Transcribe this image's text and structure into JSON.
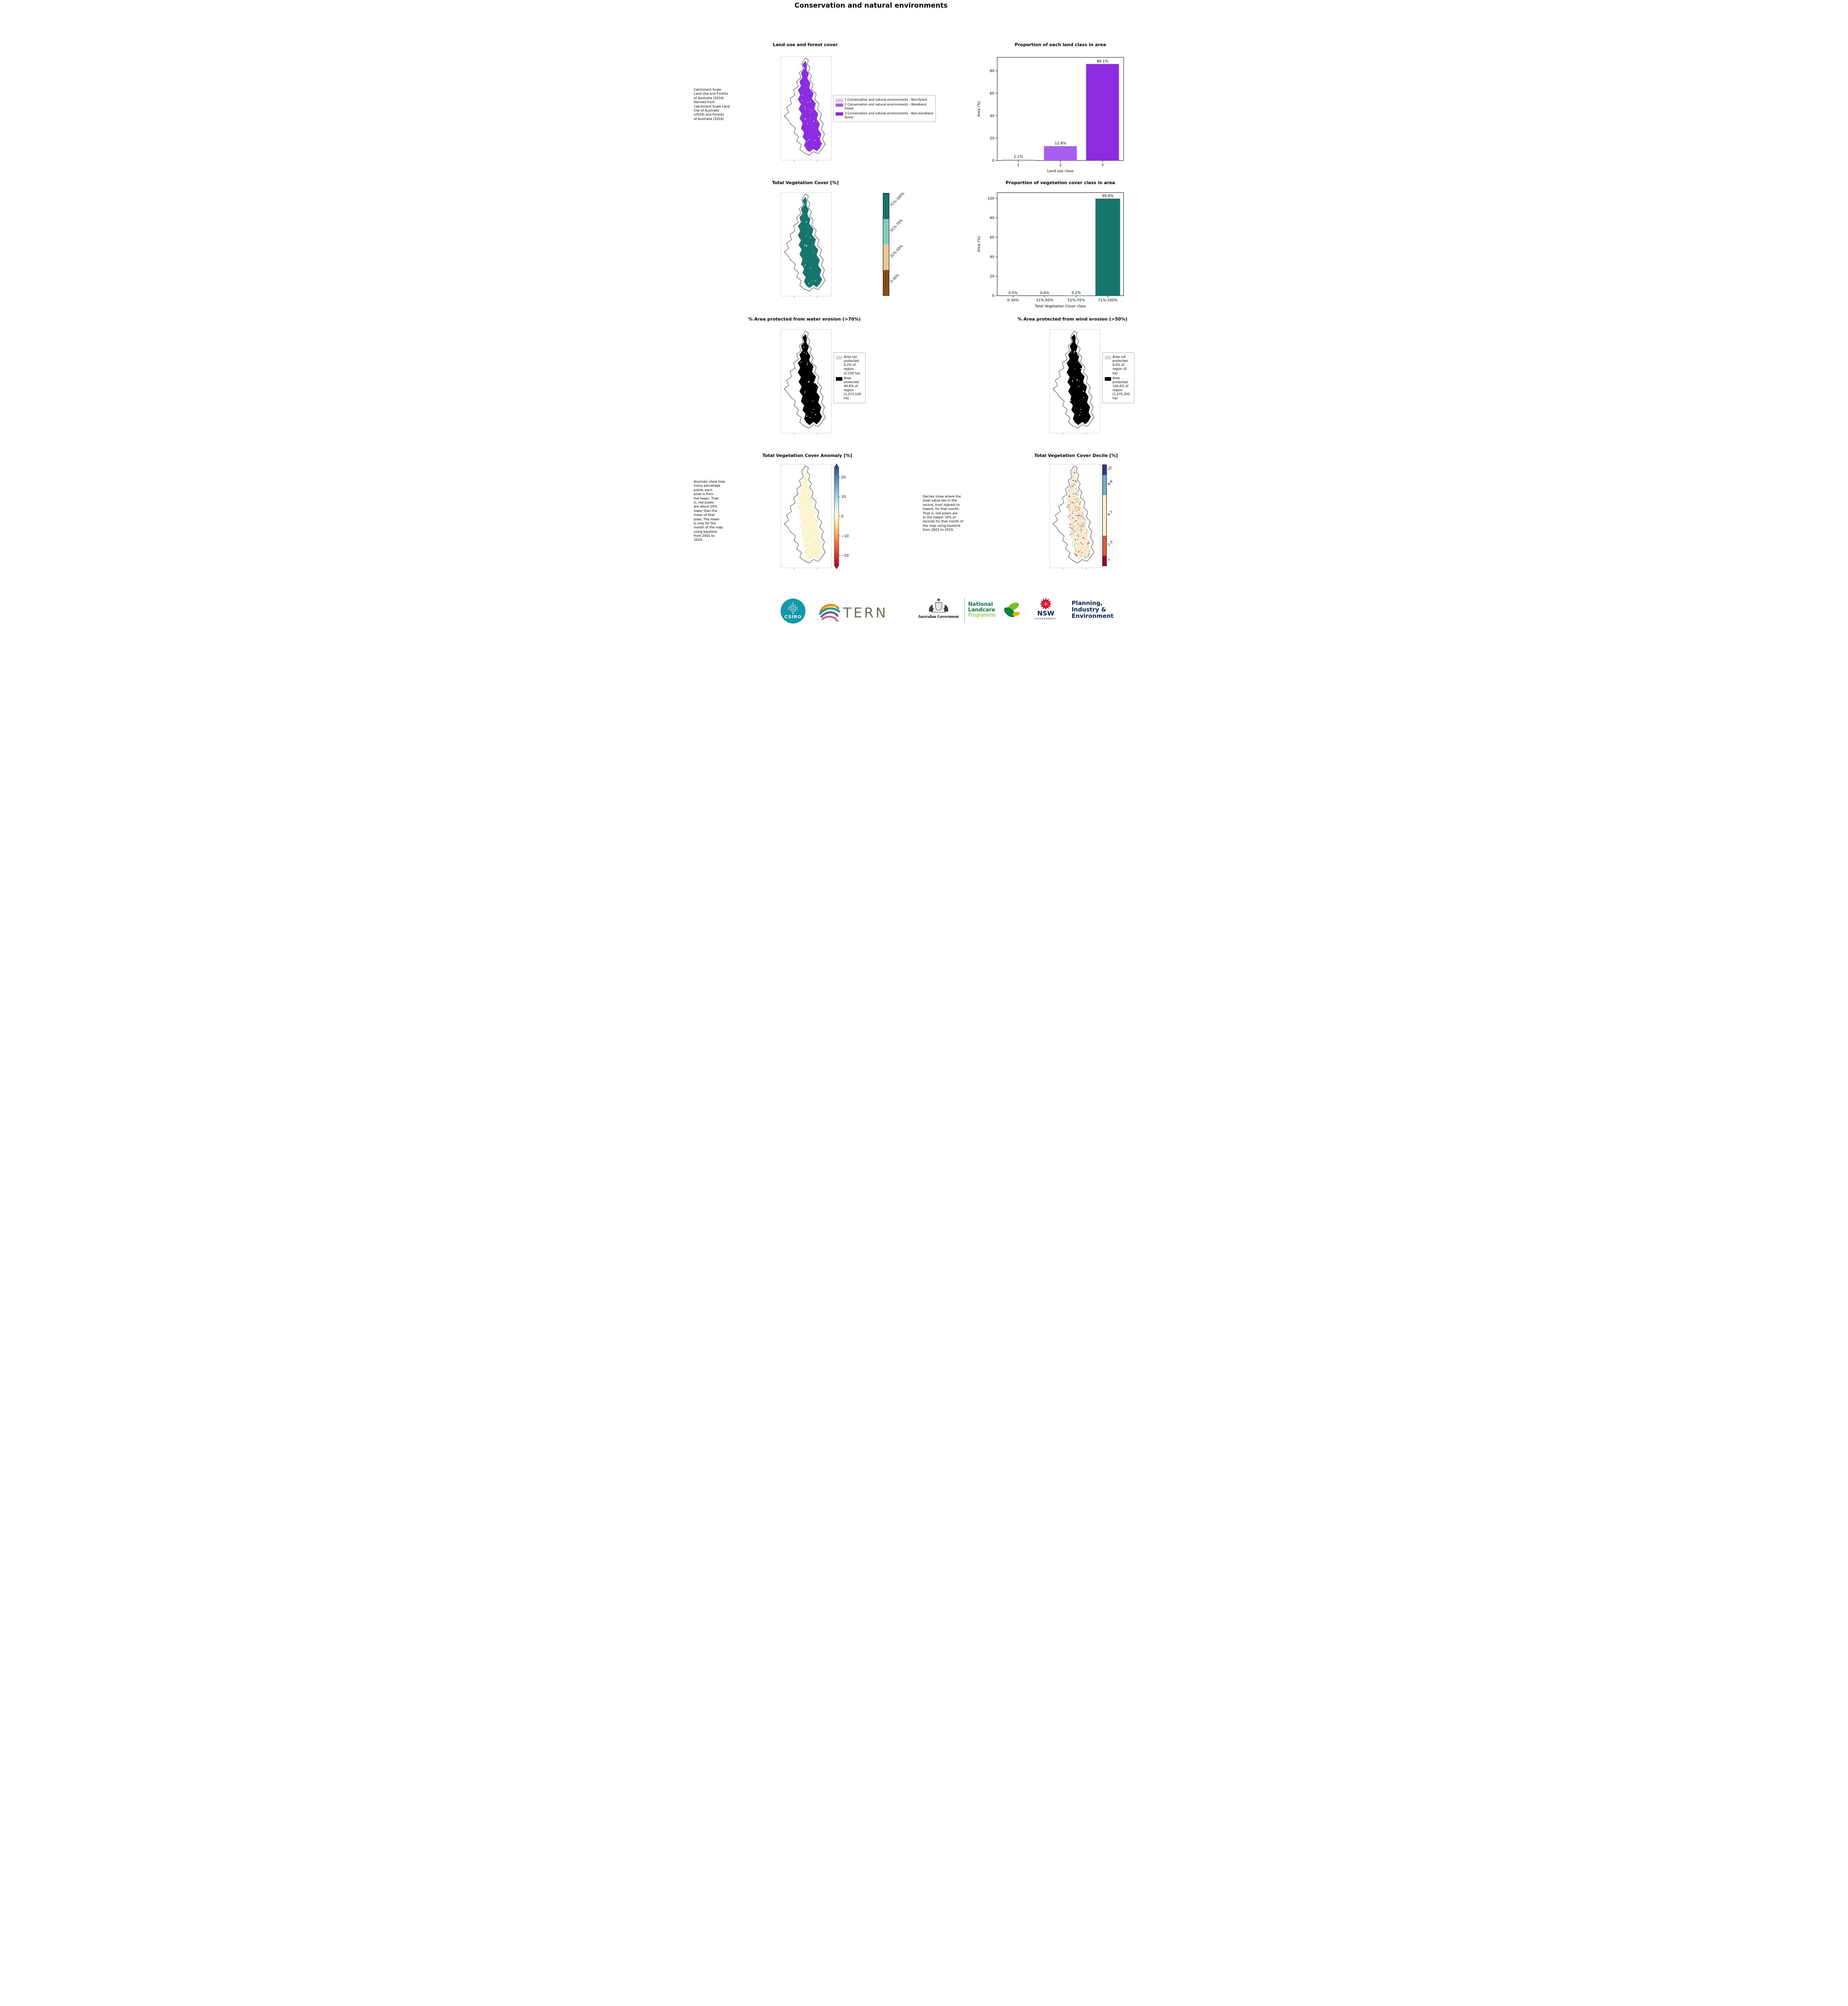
{
  "page": {
    "title": "Conservation and natural environments"
  },
  "colors": {
    "class1": "#d9c2f0",
    "class2": "#a65df0",
    "class3": "#8b2be2",
    "veg_dark_teal": "#16766d",
    "veg_light_teal": "#7dd0bf",
    "veg_tan": "#e9c893",
    "veg_brown": "#8a4d0f",
    "protected_black": "#000000",
    "not_protected_gray": "#d9d9d9"
  },
  "land_use": {
    "title": "Land use and forest cover",
    "caption": " Catchment Scale\nLand Use and Forests\nof Australia (2018)\nDerived from\nCatchment Scale Land\nUse of Australia\n(2018) and Forests\nof Australia (2018)",
    "legend": [
      {
        "label": "1 Conservation and natural environments - Non-forest",
        "color": "#d9c2f0"
      },
      {
        "label": "2 Conservation and natural environments - Woodland forest",
        "color": "#a65df0"
      },
      {
        "label": "3 Conservation and natural environments - Non-woodland forest",
        "color": "#8b2be2"
      }
    ]
  },
  "veg_cover_map": {
    "title": "Total Vegetation Cover [%]",
    "colorbar": [
      {
        "label": "71%-100%",
        "color": "#16766d"
      },
      {
        "label": "51%-70%",
        "color": "#7dd0bf"
      },
      {
        "label": "31%-50%",
        "color": "#e9c893"
      },
      {
        "label": "0-30%",
        "color": "#8a4d0f"
      }
    ]
  },
  "water_erosion": {
    "title": "% Area protected from water erosion (>70%)",
    "legend": [
      {
        "label": "Area not protected 0.2% of region (2,150 ha)",
        "color": "#d9d9d9"
      },
      {
        "label": "Area protected 99.8% of region (1,073,149 ha)",
        "color": "#000000"
      }
    ]
  },
  "wind_erosion": {
    "title": "% Area protected from wind erosion (>50%)",
    "legend": [
      {
        "label": "Area not protected 0.0% of region (0 ha)",
        "color": "#d9d9d9"
      },
      {
        "label": "Area protected 100.0% of region (1,075,300 ha)",
        "color": "#000000"
      }
    ]
  },
  "anomaly": {
    "title": "Total Vegetation Cover Anomaly [%]",
    "caption": "Anomaly show how\nmany percetage\npoints each\npixel is from\nthe mean. That\nis, red pixels\nare about 20%\nlower than the\nmean of that\npixel. The mean\nis only for the\nmonth of the map\nusing baseline\nfrom 2001 to\n2019.",
    "colorbar_ticks": [
      "20",
      "10",
      "0",
      "−10",
      "−20"
    ]
  },
  "decile": {
    "title": "Total Vegetation Cover Decile [%]",
    "caption": "Deciles show where the\npixel value lies in the\nrecord, from highest to\nlowest, for that month.\nThat is, red pixels are\nin the lowest 10% of\nrecords for that month of\nthe map using baseline\nfrom 2001 to 2019.",
    "colorbar": [
      {
        "label": "10",
        "color": "#313695",
        "span": 1
      },
      {
        "label": "8-9",
        "color": "#74add1",
        "span": 2
      },
      {
        "label": "4-7",
        "color": "#fdf0c2",
        "span": 4
      },
      {
        "label": "2-3",
        "color": "#ea5739",
        "span": 2
      },
      {
        "label": "1",
        "color": "#a50026",
        "span": 1
      }
    ]
  },
  "chart_data": [
    {
      "id": "land-class-proportion",
      "type": "bar",
      "title": "Proportion of each land class in area",
      "categories": [
        "1",
        "2",
        "3"
      ],
      "values": [
        1.1,
        12.8,
        86.1
      ],
      "bar_labels": [
        "1.1%",
        "12.8%",
        "86.1%"
      ],
      "bar_colors": [
        "#d9c2f0",
        "#a65df0",
        "#8b2be2"
      ],
      "xlabel": "Land use class",
      "ylabel": "Area (%)",
      "ylim": [
        0,
        92
      ],
      "yticks": [
        0,
        20,
        40,
        60,
        80
      ],
      "grid": false,
      "legend_position": "none"
    },
    {
      "id": "veg-cover-proportion",
      "type": "bar",
      "title": "Proportion of vegetation cover class in area",
      "categories": [
        "0-30%",
        "31%-50%",
        "51%-70%",
        "71%-100%"
      ],
      "values": [
        0.0,
        0.0,
        0.2,
        99.8
      ],
      "bar_labels": [
        "0.0%",
        "0.0%",
        "0.2%",
        "99.8%"
      ],
      "bar_colors": [
        "#16766d",
        "#16766d",
        "#16766d",
        "#16766d"
      ],
      "xlabel": "Total Vegetation Cover class",
      "ylabel": "Area (%)",
      "ylim": [
        0,
        106
      ],
      "yticks": [
        0,
        20,
        40,
        60,
        80,
        100
      ],
      "grid": false,
      "legend_position": "none"
    }
  ],
  "footer": {
    "csiro_label": "CSIRO",
    "tern_label": "TERN",
    "aus_gov_label": "Australian Government",
    "landcare_line1": "National",
    "landcare_line2": "Landcare",
    "landcare_line3": "Programme",
    "nsw_label": "NSW",
    "nsw_sub": "GOVERNMENT",
    "planning_line1": "Planning,",
    "planning_line2": "Industry &",
    "planning_line3": "Environment"
  }
}
